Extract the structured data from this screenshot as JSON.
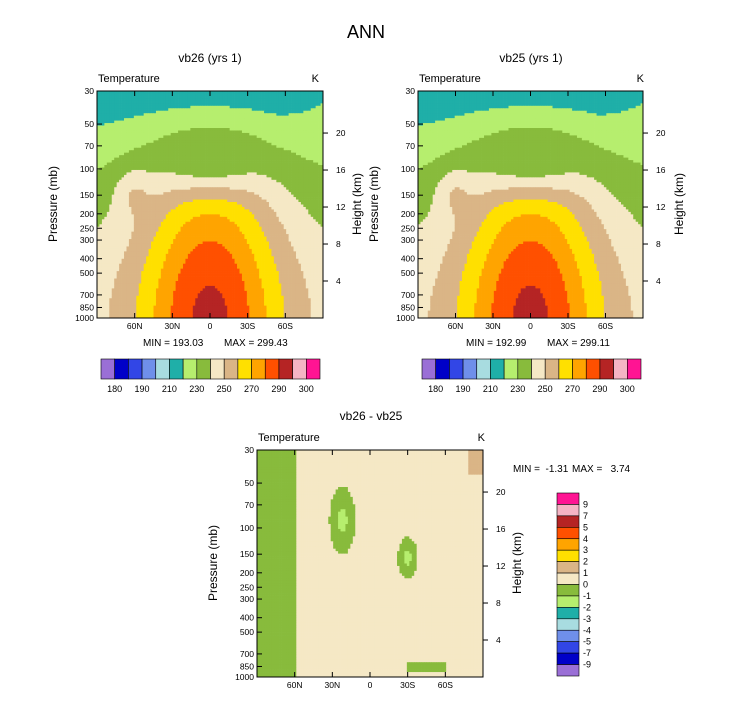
{
  "main_title": "ANN",
  "chart_data": [
    {
      "id": "p1",
      "type": "contour",
      "title": "vb26 (yrs 1)",
      "variable": "Temperature",
      "units": "K",
      "ylabel_left": "Pressure (mb)",
      "ylabel_right": "Height (km)",
      "xticks": [
        "60N",
        "30N",
        "0",
        "30S",
        "60S"
      ],
      "xtick_lat": [
        60,
        30,
        0,
        -30,
        -60
      ],
      "xlim": [
        90,
        -90
      ],
      "pressure_ticks": [
        "30",
        "50",
        "70",
        "100",
        "150",
        "200",
        "250",
        "300",
        "400",
        "500",
        "700",
        "850",
        "1000"
      ],
      "height_ticks": [
        "20",
        "16",
        "12",
        "8",
        "4"
      ],
      "ylim_mb": [
        30,
        1000
      ],
      "min_label": "MIN = 193.03",
      "max_label": "MAX = 299.43",
      "min": 193.03,
      "max": 299.43,
      "levels": [
        180,
        185,
        190,
        200,
        210,
        220,
        230,
        240,
        250,
        260,
        270,
        280,
        290,
        295,
        300
      ],
      "colorbar_labels": [
        "180",
        "190",
        "210",
        "230",
        "250",
        "270",
        "290",
        "300"
      ]
    },
    {
      "id": "p2",
      "type": "contour",
      "title": "vb25 (yrs 1)",
      "variable": "Temperature",
      "units": "K",
      "ylabel_left": "Pressure (mb)",
      "ylabel_right": "Height (km)",
      "xticks": [
        "60N",
        "30N",
        "0",
        "30S",
        "60S"
      ],
      "xtick_lat": [
        60,
        30,
        0,
        -30,
        -60
      ],
      "xlim": [
        90,
        -90
      ],
      "pressure_ticks": [
        "30",
        "50",
        "70",
        "100",
        "150",
        "200",
        "250",
        "300",
        "400",
        "500",
        "700",
        "850",
        "1000"
      ],
      "height_ticks": [
        "20",
        "16",
        "12",
        "8",
        "4"
      ],
      "ylim_mb": [
        30,
        1000
      ],
      "min_label": "MIN = 192.99",
      "max_label": "MAX = 299.11",
      "min": 192.99,
      "max": 299.11,
      "levels": [
        180,
        185,
        190,
        200,
        210,
        220,
        230,
        240,
        250,
        260,
        270,
        280,
        290,
        295,
        300
      ],
      "colorbar_labels": [
        "180",
        "190",
        "210",
        "230",
        "250",
        "270",
        "290",
        "300"
      ]
    },
    {
      "id": "p3",
      "type": "contour",
      "title": "vb26 - vb25",
      "variable": "Temperature",
      "units": "K",
      "ylabel_left": "Pressure (mb)",
      "ylabel_right": "Height (km)",
      "xticks": [
        "60N",
        "30N",
        "0",
        "30S",
        "60S"
      ],
      "xtick_lat": [
        60,
        30,
        0,
        -30,
        -60
      ],
      "xlim": [
        90,
        -90
      ],
      "pressure_ticks": [
        "30",
        "50",
        "70",
        "100",
        "150",
        "200",
        "250",
        "300",
        "400",
        "500",
        "700",
        "850",
        "1000"
      ],
      "height_ticks": [
        "20",
        "16",
        "12",
        "8",
        "4"
      ],
      "ylim_mb": [
        30,
        1000
      ],
      "min_label": "MIN =  -1.31",
      "max_label": "MAX =   3.74",
      "min": -1.31,
      "max": 3.74,
      "levels": [
        -9,
        -7,
        -5,
        -4,
        -3,
        -2,
        -1,
        0,
        1,
        2,
        3,
        4,
        5,
        7,
        9
      ],
      "colorbar_labels": [
        "9",
        "7",
        "5",
        "4",
        "3",
        "2",
        "1",
        "0",
        "-1",
        "-2",
        "-3",
        "-4",
        "-5",
        "-7",
        "-9"
      ]
    }
  ],
  "colors": {
    "abs_palette": [
      "#9A6FD6",
      "#0000C8",
      "#3246E6",
      "#6F8FEA",
      "#A8DCE0",
      "#1FAFA8",
      "#B6EE6E",
      "#88BB3C",
      "#F5E8C5",
      "#DAB586",
      "#FFE000",
      "#FFA400",
      "#FF5000",
      "#B52424",
      "#F5B4C4",
      "#FF1493"
    ],
    "diff_palette": [
      "#9A6FD6",
      "#0000C8",
      "#3246E6",
      "#6F8FEA",
      "#A8DCE0",
      "#1FAFA8",
      "#B6EE6E",
      "#88BB3C",
      "#F5E8C5",
      "#DAB586",
      "#FFE000",
      "#FFA400",
      "#FF5000",
      "#B52424",
      "#F5B4C4",
      "#FF1493"
    ]
  }
}
